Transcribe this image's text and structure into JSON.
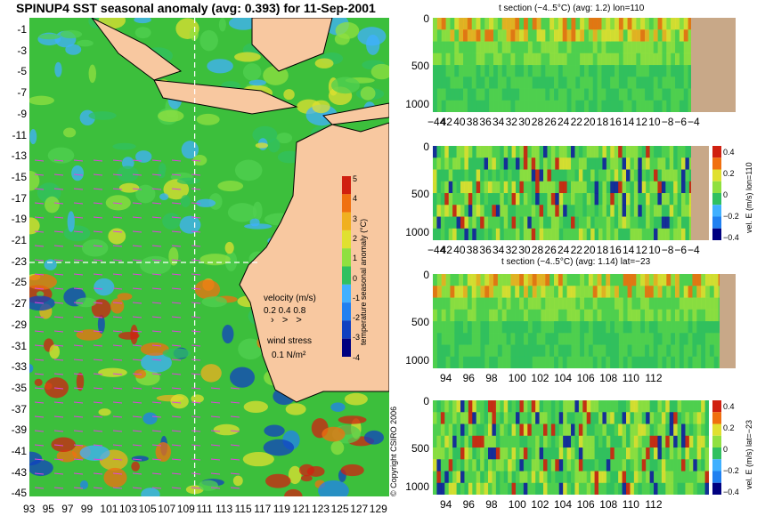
{
  "page": {
    "title": "SPINUP4 SST seasonal anomaly (avg: 0.393) for 11-Sep-2001",
    "copyright": "© Copyright CSIRO 2006"
  },
  "colors": {
    "land": "#f8c8a0",
    "bottom": "#c8a888",
    "guide": "#ffffff",
    "vector": "#e040e0"
  },
  "chart_data": [
    {
      "id": "map",
      "type": "heatmap",
      "title": "SPINUP4 SST seasonal anomaly (avg: 0.393) for 11-Sep-2001",
      "xlabel": "",
      "ylabel": "",
      "x_ticks": [
        "93",
        "95",
        "97",
        "99",
        "101",
        "103",
        "105",
        "107",
        "109",
        "111",
        "113",
        "115",
        "117",
        "119",
        "121",
        "123",
        "125",
        "127",
        "129"
      ],
      "y_ticks": [
        "-1",
        "-3",
        "-5",
        "-7",
        "-9",
        "-11",
        "-13",
        "-15",
        "-17",
        "-19",
        "-21",
        "-23",
        "-25",
        "-27",
        "-29",
        "-31",
        "-33",
        "-35",
        "-37",
        "-39",
        "-41",
        "-43",
        "-45"
      ],
      "xlim": [
        93,
        130
      ],
      "ylim": [
        -45,
        0
      ],
      "guide_lines": {
        "lon": 110,
        "lat": -23
      },
      "colorbar": {
        "label": "temperature seasonal anomaly (°C)",
        "ticks": [
          "5",
          "4",
          "3",
          "2",
          "1",
          "0",
          "-1",
          "-2",
          "-3",
          "-4"
        ],
        "range": [
          -4,
          5
        ]
      },
      "legend": {
        "velocity_label": "velocity (m/s)",
        "velocity_values": "0.2 0.4 0.8",
        "wind_label": "wind stress",
        "wind_value": "0.1 N/m²"
      }
    },
    {
      "id": "t-lon",
      "type": "heatmap",
      "title": "t section (−4..5°C) (avg: 1.2) lon=110",
      "x_ticks": [
        "−44",
        "42",
        "40",
        "38",
        "36",
        "34",
        "32",
        "30",
        "28",
        "26",
        "24",
        "22",
        "20",
        "18",
        "16",
        "14",
        "12",
        "10",
        "−8",
        "−6",
        "−4"
      ],
      "y_ticks": [
        "0",
        "500",
        "1000"
      ],
      "xlim": [
        -45,
        -2
      ],
      "ylim": [
        1050,
        0
      ]
    },
    {
      "id": "v-lon",
      "type": "heatmap",
      "title": "",
      "x_ticks": [
        "−44",
        "42",
        "40",
        "38",
        "36",
        "34",
        "32",
        "30",
        "28",
        "26",
        "24",
        "22",
        "20",
        "18",
        "16",
        "14",
        "12",
        "10",
        "−8",
        "−6",
        "−4"
      ],
      "y_ticks": [
        "0",
        "500",
        "1000"
      ],
      "xlim": [
        -45,
        -2
      ],
      "ylim": [
        1050,
        0
      ],
      "colorbar": {
        "label": "vel. E (m/s) lon=110",
        "ticks": [
          "0.4",
          "0.2",
          "0",
          "−0.2",
          "−0.4"
        ],
        "range": [
          -0.4,
          0.4
        ]
      }
    },
    {
      "id": "t-lat",
      "type": "heatmap",
      "title": "t section (−4..5°C) (avg: 1.14) lat=−23",
      "x_ticks": [
        "94",
        "96",
        "98",
        "100",
        "102",
        "104",
        "106",
        "108",
        "110",
        "112"
      ],
      "y_ticks": [
        "0",
        "500",
        "1000"
      ],
      "xlim": [
        93,
        114
      ],
      "ylim": [
        1050,
        0
      ]
    },
    {
      "id": "v-lat",
      "type": "heatmap",
      "title": "",
      "x_ticks": [
        "94",
        "96",
        "98",
        "100",
        "102",
        "104",
        "106",
        "108",
        "110",
        "112"
      ],
      "y_ticks": [
        "0",
        "500",
        "1000"
      ],
      "xlim": [
        93,
        114
      ],
      "ylim": [
        1050,
        0
      ],
      "colorbar": {
        "label": "vel. E (m/s) lat=−23",
        "ticks": [
          "0.4",
          "0.2",
          "0",
          "−0.2",
          "−0.4"
        ],
        "range": [
          -0.4,
          0.4
        ]
      }
    }
  ]
}
